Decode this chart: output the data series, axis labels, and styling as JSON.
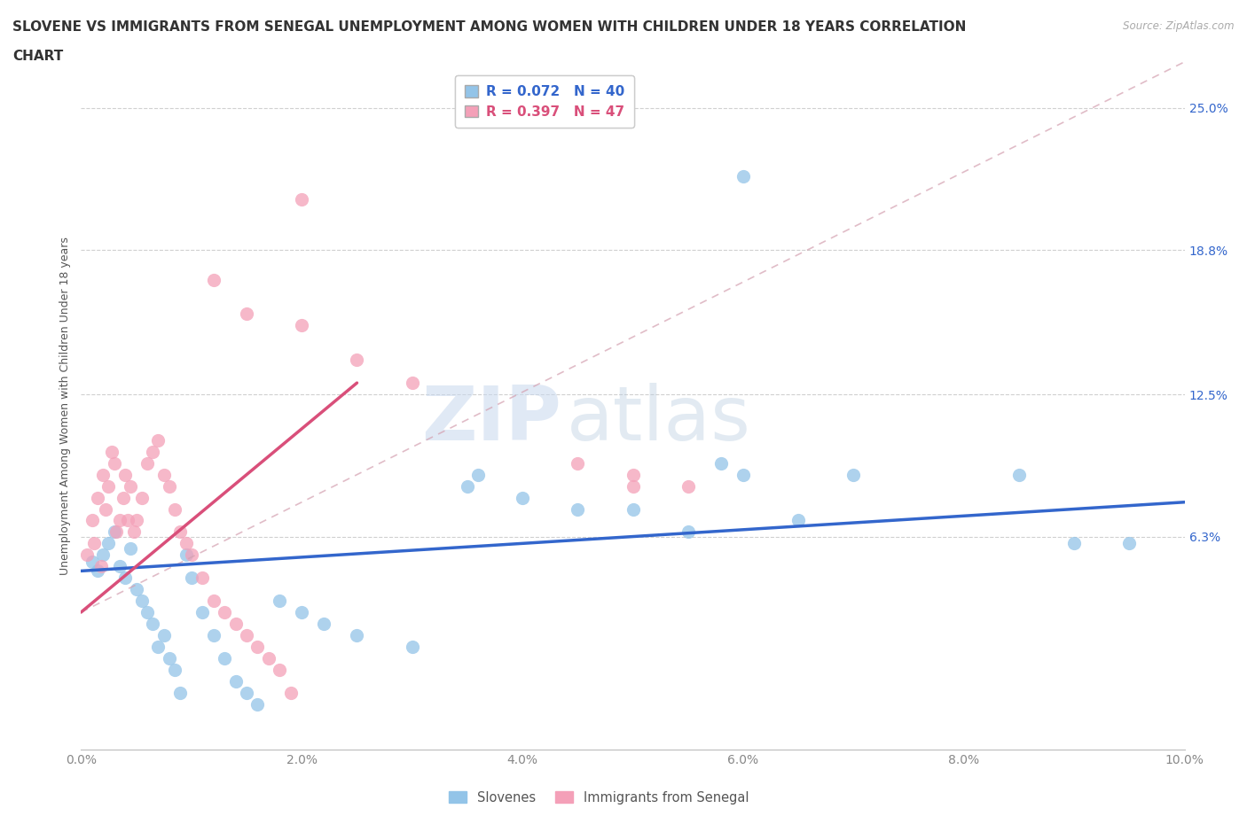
{
  "title_line1": "SLOVENE VS IMMIGRANTS FROM SENEGAL UNEMPLOYMENT AMONG WOMEN WITH CHILDREN UNDER 18 YEARS CORRELATION",
  "title_line2": "CHART",
  "source_text": "Source: ZipAtlas.com",
  "ylabel": "Unemployment Among Women with Children Under 18 years",
  "xtick_values": [
    0.0,
    2.0,
    4.0,
    6.0,
    8.0,
    10.0
  ],
  "ytick_values": [
    6.3,
    12.5,
    18.8,
    25.0
  ],
  "ytick_labels": [
    "6.3%",
    "12.5%",
    "18.8%",
    "25.0%"
  ],
  "xlim": [
    0.0,
    10.0
  ],
  "ylim": [
    -3.0,
    27.0
  ],
  "legend_label1": "Slovenes",
  "legend_label2": "Immigrants from Senegal",
  "blue_scatter": [
    [
      0.1,
      5.2
    ],
    [
      0.15,
      4.8
    ],
    [
      0.2,
      5.5
    ],
    [
      0.25,
      6.0
    ],
    [
      0.3,
      6.5
    ],
    [
      0.35,
      5.0
    ],
    [
      0.4,
      4.5
    ],
    [
      0.45,
      5.8
    ],
    [
      0.5,
      4.0
    ],
    [
      0.55,
      3.5
    ],
    [
      0.6,
      3.0
    ],
    [
      0.65,
      2.5
    ],
    [
      0.7,
      1.5
    ],
    [
      0.75,
      2.0
    ],
    [
      0.8,
      1.0
    ],
    [
      0.85,
      0.5
    ],
    [
      0.9,
      -0.5
    ],
    [
      0.95,
      5.5
    ],
    [
      1.0,
      4.5
    ],
    [
      1.1,
      3.0
    ],
    [
      1.2,
      2.0
    ],
    [
      1.3,
      1.0
    ],
    [
      1.4,
      0.0
    ],
    [
      1.5,
      -0.5
    ],
    [
      1.6,
      -1.0
    ],
    [
      1.8,
      3.5
    ],
    [
      2.0,
      3.0
    ],
    [
      2.2,
      2.5
    ],
    [
      2.5,
      2.0
    ],
    [
      3.0,
      1.5
    ],
    [
      3.5,
      8.5
    ],
    [
      3.6,
      9.0
    ],
    [
      4.0,
      8.0
    ],
    [
      4.5,
      7.5
    ],
    [
      5.0,
      7.5
    ],
    [
      5.5,
      6.5
    ],
    [
      5.8,
      9.5
    ],
    [
      6.0,
      9.0
    ],
    [
      6.5,
      7.0
    ],
    [
      7.0,
      9.0
    ],
    [
      8.5,
      9.0
    ],
    [
      9.0,
      6.0
    ],
    [
      9.5,
      6.0
    ],
    [
      6.0,
      22.0
    ]
  ],
  "pink_scatter": [
    [
      0.05,
      5.5
    ],
    [
      0.1,
      7.0
    ],
    [
      0.12,
      6.0
    ],
    [
      0.15,
      8.0
    ],
    [
      0.18,
      5.0
    ],
    [
      0.2,
      9.0
    ],
    [
      0.22,
      7.5
    ],
    [
      0.25,
      8.5
    ],
    [
      0.28,
      10.0
    ],
    [
      0.3,
      9.5
    ],
    [
      0.32,
      6.5
    ],
    [
      0.35,
      7.0
    ],
    [
      0.38,
      8.0
    ],
    [
      0.4,
      9.0
    ],
    [
      0.42,
      7.0
    ],
    [
      0.45,
      8.5
    ],
    [
      0.48,
      6.5
    ],
    [
      0.5,
      7.0
    ],
    [
      0.55,
      8.0
    ],
    [
      0.6,
      9.5
    ],
    [
      0.65,
      10.0
    ],
    [
      0.7,
      10.5
    ],
    [
      0.75,
      9.0
    ],
    [
      0.8,
      8.5
    ],
    [
      0.85,
      7.5
    ],
    [
      0.9,
      6.5
    ],
    [
      0.95,
      6.0
    ],
    [
      1.0,
      5.5
    ],
    [
      1.1,
      4.5
    ],
    [
      1.2,
      3.5
    ],
    [
      1.3,
      3.0
    ],
    [
      1.4,
      2.5
    ],
    [
      1.5,
      2.0
    ],
    [
      1.6,
      1.5
    ],
    [
      1.7,
      1.0
    ],
    [
      1.8,
      0.5
    ],
    [
      1.9,
      -0.5
    ],
    [
      2.0,
      21.0
    ],
    [
      1.2,
      17.5
    ],
    [
      1.5,
      16.0
    ],
    [
      2.0,
      15.5
    ],
    [
      2.5,
      14.0
    ],
    [
      3.0,
      13.0
    ],
    [
      4.5,
      9.5
    ],
    [
      5.0,
      9.0
    ],
    [
      5.0,
      8.5
    ],
    [
      5.5,
      8.5
    ]
  ],
  "blue_line": {
    "x": [
      0.0,
      10.0
    ],
    "y": [
      4.8,
      7.8
    ]
  },
  "pink_line_solid": {
    "x": [
      0.0,
      2.5
    ],
    "y": [
      3.0,
      13.0
    ]
  },
  "pink_line_dashed": {
    "x": [
      0.0,
      10.0
    ],
    "y": [
      3.0,
      27.0
    ]
  },
  "blue_color": "#93c4e8",
  "pink_color": "#f4a0b8",
  "blue_line_color": "#3366cc",
  "pink_line_color": "#d94f7a",
  "pink_dash_color": "#d4a0b0",
  "grid_color": "#d0d0d0",
  "background_color": "#ffffff",
  "title_fontsize": 11,
  "axis_label_fontsize": 9,
  "tick_fontsize": 10,
  "tick_color_y": "#4488cc",
  "tick_color_x": "#888888",
  "watermark_zip": "ZIP",
  "watermark_atlas": "atlas",
  "watermark_color": "#ccd8ee"
}
